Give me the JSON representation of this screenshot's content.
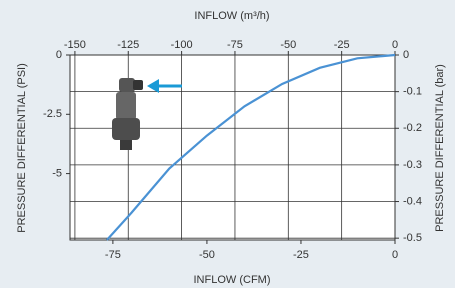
{
  "chart_data": {
    "type": "line",
    "xlabel": "INFLOW (CFM)",
    "x2label": "INFLOW (m³/h)",
    "ylabel": "PRESSURE DIFFERENTIAL (PSI)",
    "y2label": "PRESSURE DIFFERENTIAL (bar)",
    "xlim": [
      -86.4,
      0
    ],
    "xticks": [
      -75,
      -50,
      -25,
      0
    ],
    "x2lim": [
      -152.3,
      0
    ],
    "x2ticks": [
      -150,
      -125,
      -100,
      -75,
      -50,
      -25,
      0
    ],
    "ylim": [
      -7.8,
      0
    ],
    "yticks": [
      -5,
      -2.5,
      0
    ],
    "y2lim": [
      -0.505,
      0
    ],
    "y2ticks": [
      -0.5,
      -0.4,
      -0.3,
      -0.2,
      -0.1,
      0
    ],
    "x": [
      0,
      -10,
      -20,
      -30,
      -40,
      -50,
      -60,
      -70,
      -76.6
    ],
    "series": [
      {
        "color": "#4a92d4",
        "axis": "y2",
        "values": [
          0,
          -0.009,
          -0.035,
          -0.079,
          -0.14,
          -0.22,
          -0.31,
          -0.43,
          -0.505
        ]
      }
    ],
    "grid": true
  }
}
